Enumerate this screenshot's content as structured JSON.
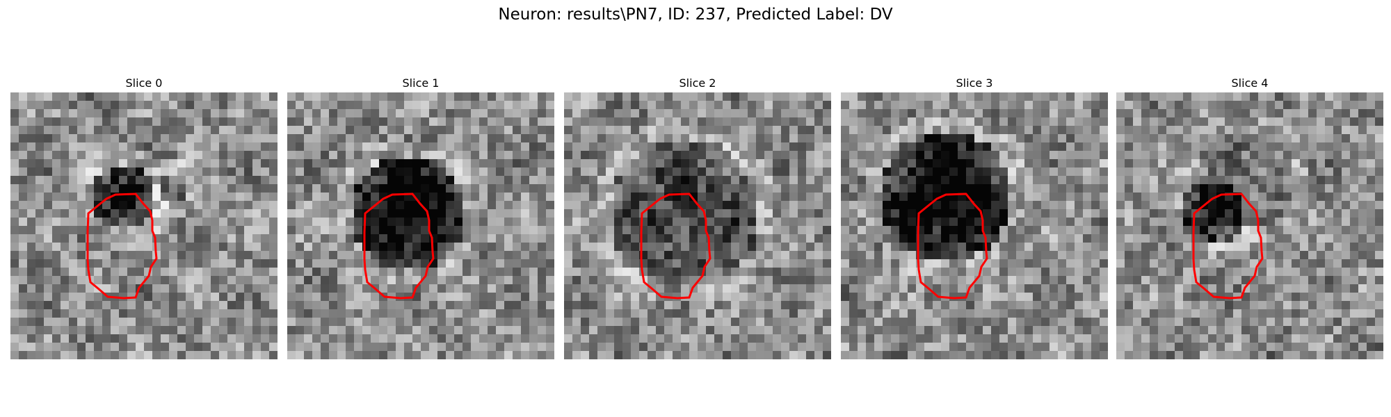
{
  "figure": {
    "title": "Neuron: results\\PN7, ID: 237, Predicted Label: DV",
    "panels": [
      {
        "title": "Slice 0"
      },
      {
        "title": "Slice 1"
      },
      {
        "title": "Slice 2"
      },
      {
        "title": "Slice 3"
      },
      {
        "title": "Slice 4"
      }
    ],
    "contour_color": "#ff0000",
    "colormap": "gray"
  }
}
